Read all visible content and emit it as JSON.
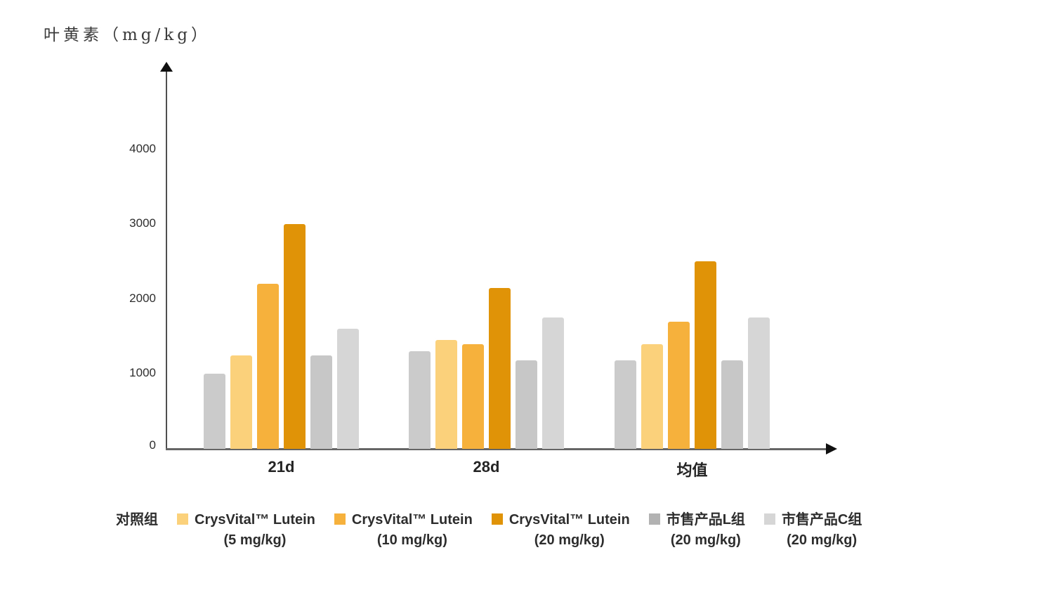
{
  "page": {
    "background": "#ffffff"
  },
  "chart_data": {
    "type": "bar",
    "title": "叶黄素（mg/kg）",
    "ylabel": "叶黄素（mg/kg）",
    "xlabel": "",
    "categories": [
      "21d",
      "28d",
      "均值"
    ],
    "series": [
      {
        "key": "control",
        "name": "对照组",
        "dose": "",
        "color": "#CBCBCB",
        "legend_swatch": false,
        "values": [
          1000,
          1300,
          1180
        ]
      },
      {
        "key": "cv5",
        "name": "CrysVital™ Lutein",
        "dose": "(5 mg/kg)",
        "color": "#FBD17C",
        "legend_swatch": true,
        "values": [
          1250,
          1450,
          1400
        ]
      },
      {
        "key": "cv10",
        "name": "CrysVital™ Lutein",
        "dose": "(10 mg/kg)",
        "color": "#F5B13C",
        "legend_swatch": true,
        "values": [
          2200,
          1400,
          1700
        ]
      },
      {
        "key": "cv20",
        "name": "CrysVital™ Lutein",
        "dose": "(20 mg/kg)",
        "color": "#E19307",
        "legend_swatch": true,
        "values": [
          3000,
          2150,
          2500
        ]
      },
      {
        "key": "market-l",
        "name": "市售产品L组",
        "dose": "(20 mg/kg)",
        "color": "#C7C7C7",
        "legend_color": "#B2B2B2",
        "legend_swatch": true,
        "values": [
          1250,
          1180,
          1180
        ]
      },
      {
        "key": "market-c",
        "name": "市售产品C组",
        "dose": "(20 mg/kg)",
        "color": "#D6D6D6",
        "legend_swatch": true,
        "values": [
          1600,
          1750,
          1750
        ]
      }
    ],
    "y_ticks": [
      0,
      1000,
      2000,
      3000,
      4000
    ],
    "ylim": [
      0,
      4800
    ],
    "grid": false,
    "legend_position": "bottom"
  }
}
